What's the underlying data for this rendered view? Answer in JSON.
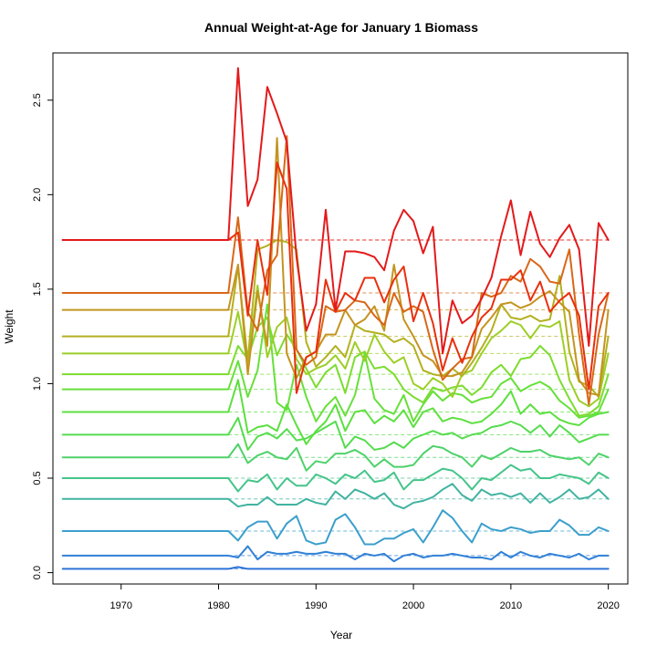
{
  "chart_data": {
    "type": "line",
    "title": "Annual Weight-at-Age for January 1 Biomass",
    "xlabel": "Year",
    "ylabel": "Weight",
    "xlim": [
      1963,
      2022
    ],
    "ylim": [
      -0.06,
      2.75
    ],
    "xticks": [
      1970,
      1980,
      1990,
      2000,
      2010,
      2020
    ],
    "yticks": [
      0.0,
      0.5,
      1.0,
      1.5,
      2.0,
      2.5
    ],
    "ytick_labels": [
      "0.0",
      "0.5",
      "1.0",
      "1.5",
      "2.0",
      "2.5"
    ],
    "grid": false,
    "legend": "none",
    "reference_line_style": "dashed",
    "x": [
      1964,
      1965,
      1966,
      1967,
      1968,
      1969,
      1970,
      1971,
      1972,
      1973,
      1974,
      1975,
      1976,
      1977,
      1978,
      1979,
      1980,
      1981,
      1982,
      1983,
      1984,
      1985,
      1986,
      1987,
      1988,
      1989,
      1990,
      1991,
      1992,
      1993,
      1994,
      1995,
      1996,
      1997,
      1998,
      1999,
      2000,
      2001,
      2002,
      2003,
      2004,
      2005,
      2006,
      2007,
      2008,
      2009,
      2010,
      2011,
      2012,
      2013,
      2014,
      2015,
      2016,
      2017,
      2018,
      2019,
      2020
    ],
    "series": [
      {
        "color": "#2e73d9",
        "mean": 0.02,
        "values": [
          0.02,
          0.02,
          0.02,
          0.02,
          0.02,
          0.02,
          0.02,
          0.02,
          0.02,
          0.02,
          0.02,
          0.02,
          0.02,
          0.02,
          0.02,
          0.02,
          0.02,
          0.02,
          0.03,
          0.02,
          0.02,
          0.02,
          0.02,
          0.02,
          0.02,
          0.02,
          0.02,
          0.02,
          0.02,
          0.02,
          0.02,
          0.02,
          0.02,
          0.02,
          0.02,
          0.02,
          0.02,
          0.02,
          0.02,
          0.02,
          0.02,
          0.02,
          0.02,
          0.02,
          0.02,
          0.02,
          0.02,
          0.02,
          0.02,
          0.02,
          0.02,
          0.02,
          0.02,
          0.02,
          0.02,
          0.02,
          0.02
        ]
      },
      {
        "color": "#3080d6",
        "mean": 0.09,
        "values": [
          0.09,
          0.09,
          0.09,
          0.09,
          0.09,
          0.09,
          0.09,
          0.09,
          0.09,
          0.09,
          0.09,
          0.09,
          0.09,
          0.09,
          0.09,
          0.09,
          0.09,
          0.09,
          0.08,
          0.14,
          0.07,
          0.11,
          0.1,
          0.1,
          0.11,
          0.1,
          0.1,
          0.11,
          0.1,
          0.1,
          0.07,
          0.1,
          0.09,
          0.1,
          0.06,
          0.09,
          0.1,
          0.08,
          0.09,
          0.09,
          0.1,
          0.09,
          0.08,
          0.08,
          0.07,
          0.11,
          0.08,
          0.11,
          0.09,
          0.08,
          0.1,
          0.09,
          0.08,
          0.1,
          0.07,
          0.09,
          0.09
        ]
      },
      {
        "color": "#3c9fcc",
        "mean": 0.22,
        "values": [
          0.22,
          0.22,
          0.22,
          0.22,
          0.22,
          0.22,
          0.22,
          0.22,
          0.22,
          0.22,
          0.22,
          0.22,
          0.22,
          0.22,
          0.22,
          0.22,
          0.22,
          0.22,
          0.17,
          0.24,
          0.27,
          0.27,
          0.18,
          0.26,
          0.3,
          0.17,
          0.15,
          0.16,
          0.28,
          0.31,
          0.24,
          0.15,
          0.15,
          0.18,
          0.18,
          0.21,
          0.23,
          0.16,
          0.24,
          0.33,
          0.29,
          0.22,
          0.16,
          0.26,
          0.23,
          0.22,
          0.24,
          0.23,
          0.21,
          0.22,
          0.22,
          0.28,
          0.25,
          0.2,
          0.2,
          0.24,
          0.22
        ]
      },
      {
        "color": "#40b3a0",
        "mean": 0.39,
        "values": [
          0.39,
          0.39,
          0.39,
          0.39,
          0.39,
          0.39,
          0.39,
          0.39,
          0.39,
          0.39,
          0.39,
          0.39,
          0.39,
          0.39,
          0.39,
          0.39,
          0.39,
          0.39,
          0.35,
          0.36,
          0.36,
          0.4,
          0.36,
          0.36,
          0.36,
          0.39,
          0.37,
          0.36,
          0.43,
          0.39,
          0.44,
          0.42,
          0.39,
          0.42,
          0.36,
          0.34,
          0.37,
          0.38,
          0.4,
          0.44,
          0.47,
          0.41,
          0.38,
          0.44,
          0.41,
          0.42,
          0.4,
          0.42,
          0.37,
          0.42,
          0.37,
          0.4,
          0.44,
          0.39,
          0.4,
          0.44,
          0.39
        ]
      },
      {
        "color": "#45c48a",
        "mean": 0.5,
        "values": [
          0.5,
          0.5,
          0.5,
          0.5,
          0.5,
          0.5,
          0.5,
          0.5,
          0.5,
          0.5,
          0.5,
          0.5,
          0.5,
          0.5,
          0.5,
          0.5,
          0.5,
          0.5,
          0.43,
          0.49,
          0.48,
          0.52,
          0.44,
          0.5,
          0.46,
          0.46,
          0.52,
          0.5,
          0.47,
          0.52,
          0.5,
          0.54,
          0.48,
          0.49,
          0.53,
          0.44,
          0.49,
          0.49,
          0.52,
          0.55,
          0.54,
          0.5,
          0.44,
          0.5,
          0.49,
          0.53,
          0.57,
          0.54,
          0.55,
          0.5,
          0.5,
          0.52,
          0.51,
          0.5,
          0.47,
          0.53,
          0.5
        ]
      },
      {
        "color": "#4ed26a",
        "mean": 0.61,
        "values": [
          0.61,
          0.61,
          0.61,
          0.61,
          0.61,
          0.61,
          0.61,
          0.61,
          0.61,
          0.61,
          0.61,
          0.61,
          0.61,
          0.61,
          0.61,
          0.61,
          0.61,
          0.61,
          0.68,
          0.58,
          0.62,
          0.64,
          0.61,
          0.6,
          0.66,
          0.54,
          0.59,
          0.58,
          0.63,
          0.63,
          0.65,
          0.62,
          0.56,
          0.6,
          0.56,
          0.56,
          0.57,
          0.63,
          0.67,
          0.66,
          0.63,
          0.61,
          0.56,
          0.62,
          0.6,
          0.63,
          0.66,
          0.64,
          0.64,
          0.65,
          0.62,
          0.61,
          0.6,
          0.61,
          0.57,
          0.63,
          0.61
        ]
      },
      {
        "color": "#55dc4e",
        "mean": 0.73,
        "values": [
          0.73,
          0.73,
          0.73,
          0.73,
          0.73,
          0.73,
          0.73,
          0.73,
          0.73,
          0.73,
          0.73,
          0.73,
          0.73,
          0.73,
          0.73,
          0.73,
          0.73,
          0.73,
          0.82,
          0.65,
          0.72,
          0.74,
          0.71,
          0.76,
          0.7,
          0.71,
          0.74,
          0.77,
          0.8,
          0.66,
          0.72,
          0.7,
          0.65,
          0.66,
          0.69,
          0.66,
          0.71,
          0.73,
          0.75,
          0.73,
          0.74,
          0.71,
          0.73,
          0.74,
          0.77,
          0.78,
          0.8,
          0.78,
          0.74,
          0.78,
          0.72,
          0.78,
          0.74,
          0.69,
          0.71,
          0.73,
          0.73
        ]
      },
      {
        "color": "#5ce040",
        "mean": 0.85,
        "values": [
          0.85,
          0.85,
          0.85,
          0.85,
          0.85,
          0.85,
          0.85,
          0.85,
          0.85,
          0.85,
          0.85,
          0.85,
          0.85,
          0.85,
          0.85,
          0.85,
          0.85,
          0.85,
          1.02,
          0.74,
          0.77,
          0.78,
          0.75,
          0.89,
          0.78,
          0.68,
          0.75,
          0.8,
          0.89,
          0.75,
          0.85,
          0.86,
          0.79,
          0.83,
          0.8,
          0.86,
          0.77,
          0.85,
          0.87,
          0.8,
          0.82,
          0.81,
          0.79,
          0.8,
          0.84,
          0.89,
          0.96,
          0.84,
          0.89,
          0.84,
          0.85,
          0.81,
          0.79,
          0.78,
          0.82,
          0.84,
          0.85
        ]
      },
      {
        "color": "#66e03a",
        "mean": 0.97,
        "values": [
          0.97,
          0.97,
          0.97,
          0.97,
          0.97,
          0.97,
          0.97,
          0.97,
          0.97,
          0.97,
          0.97,
          0.97,
          0.97,
          0.97,
          0.97,
          0.97,
          0.97,
          0.97,
          1.12,
          0.93,
          1.07,
          1.42,
          0.9,
          0.86,
          1.1,
          0.93,
          0.8,
          0.88,
          0.93,
          0.83,
          0.94,
          1.16,
          0.92,
          0.86,
          0.84,
          0.94,
          0.8,
          0.89,
          0.96,
          0.91,
          0.95,
          0.94,
          0.9,
          0.92,
          0.93,
          1.0,
          1.03,
          0.96,
          0.99,
          1.01,
          0.98,
          0.91,
          0.87,
          0.82,
          0.83,
          0.85,
          0.97
        ]
      },
      {
        "color": "#7cdc30",
        "mean": 1.05,
        "values": [
          1.05,
          1.05,
          1.05,
          1.05,
          1.05,
          1.05,
          1.05,
          1.05,
          1.05,
          1.05,
          1.05,
          1.05,
          1.05,
          1.05,
          1.05,
          1.05,
          1.05,
          1.05,
          1.2,
          1.13,
          1.3,
          1.35,
          1.15,
          1.26,
          1.18,
          1.08,
          0.98,
          1.06,
          1.1,
          0.95,
          1.14,
          1.17,
          1.08,
          1.09,
          1.05,
          0.97,
          0.93,
          0.9,
          0.98,
          0.96,
          0.98,
          0.99,
          0.94,
          0.98,
          1.06,
          1.1,
          1.04,
          1.13,
          1.14,
          1.2,
          1.15,
          1.02,
          0.92,
          0.83,
          0.84,
          0.88,
          1.05
        ]
      },
      {
        "color": "#9ccf28",
        "mean": 1.16,
        "values": [
          1.16,
          1.16,
          1.16,
          1.16,
          1.16,
          1.16,
          1.16,
          1.16,
          1.16,
          1.16,
          1.16,
          1.16,
          1.16,
          1.16,
          1.16,
          1.16,
          1.16,
          1.16,
          1.38,
          1.1,
          1.52,
          1.14,
          1.3,
          1.35,
          1.13,
          1.05,
          1.08,
          1.1,
          1.15,
          1.08,
          1.22,
          1.12,
          1.26,
          1.17,
          1.11,
          1.14,
          1.0,
          0.97,
          1.03,
          1.0,
          0.93,
          1.05,
          1.07,
          1.16,
          1.24,
          1.28,
          1.33,
          1.31,
          1.24,
          1.31,
          1.3,
          1.33,
          1.02,
          0.91,
          0.88,
          0.92,
          1.16
        ]
      },
      {
        "color": "#b3b020",
        "mean": 1.25,
        "values": [
          1.25,
          1.25,
          1.25,
          1.25,
          1.25,
          1.25,
          1.25,
          1.25,
          1.25,
          1.25,
          1.25,
          1.25,
          1.25,
          1.25,
          1.25,
          1.25,
          1.25,
          1.25,
          1.62,
          1.12,
          1.71,
          1.73,
          1.76,
          1.75,
          1.71,
          1.22,
          1.09,
          1.14,
          1.2,
          1.14,
          1.31,
          1.28,
          1.27,
          1.26,
          1.22,
          1.24,
          1.2,
          1.07,
          1.05,
          1.04,
          1.08,
          1.04,
          1.11,
          1.19,
          1.28,
          1.42,
          1.35,
          1.34,
          1.36,
          1.33,
          1.34,
          1.57,
          1.17,
          1.01,
          0.99,
          0.93,
          1.25
        ]
      },
      {
        "color": "#c49420",
        "mean": 1.39,
        "values": [
          1.39,
          1.39,
          1.39,
          1.39,
          1.39,
          1.39,
          1.39,
          1.39,
          1.39,
          1.39,
          1.39,
          1.39,
          1.39,
          1.39,
          1.39,
          1.39,
          1.39,
          1.39,
          1.63,
          1.05,
          1.49,
          1.2,
          2.3,
          1.16,
          1.03,
          1.14,
          1.17,
          1.26,
          1.26,
          1.39,
          1.31,
          1.34,
          1.41,
          1.28,
          1.63,
          1.34,
          1.25,
          1.15,
          1.12,
          1.04,
          1.04,
          1.06,
          1.14,
          1.29,
          1.35,
          1.42,
          1.43,
          1.4,
          1.42,
          1.46,
          1.49,
          1.43,
          1.38,
          1.02,
          0.95,
          0.94,
          1.39
        ]
      },
      {
        "color": "#d86818",
        "mean": 1.48,
        "values": [
          1.48,
          1.48,
          1.48,
          1.48,
          1.48,
          1.48,
          1.48,
          1.48,
          1.48,
          1.48,
          1.48,
          1.48,
          1.48,
          1.48,
          1.48,
          1.48,
          1.48,
          1.48,
          1.88,
          1.38,
          1.28,
          1.6,
          1.68,
          2.31,
          1.18,
          1.1,
          1.14,
          1.41,
          1.38,
          1.39,
          1.44,
          1.43,
          1.36,
          1.31,
          1.48,
          1.38,
          1.41,
          1.38,
          1.18,
          1.02,
          1.08,
          1.13,
          1.14,
          1.48,
          1.46,
          1.48,
          1.57,
          1.54,
          1.66,
          1.62,
          1.54,
          1.53,
          1.71,
          1.26,
          0.89,
          1.26,
          1.48
        ]
      },
      {
        "color": "#e8300e",
        "mean": 1.76,
        "values": [
          1.76,
          1.76,
          1.76,
          1.76,
          1.76,
          1.76,
          1.76,
          1.76,
          1.76,
          1.76,
          1.76,
          1.76,
          1.76,
          1.76,
          1.76,
          1.76,
          1.76,
          1.76,
          1.8,
          1.36,
          1.76,
          1.47,
          2.17,
          2.03,
          0.95,
          1.14,
          1.17,
          1.55,
          1.38,
          1.48,
          1.44,
          1.56,
          1.56,
          1.43,
          1.55,
          1.62,
          1.33,
          1.48,
          1.32,
          1.07,
          1.24,
          1.11,
          1.25,
          1.35,
          1.4,
          1.55,
          1.55,
          1.6,
          1.44,
          1.54,
          1.38,
          1.44,
          1.48,
          1.36,
          0.97,
          1.41,
          1.48
        ]
      },
      {
        "color": "#e31a1c",
        "mean": 1.76,
        "values": [
          1.76,
          1.76,
          1.76,
          1.76,
          1.76,
          1.76,
          1.76,
          1.76,
          1.76,
          1.76,
          1.76,
          1.76,
          1.76,
          1.76,
          1.76,
          1.76,
          1.76,
          1.76,
          2.67,
          1.94,
          2.08,
          2.57,
          2.43,
          2.28,
          1.67,
          1.28,
          1.42,
          1.92,
          1.39,
          1.7,
          1.7,
          1.69,
          1.67,
          1.6,
          1.81,
          1.92,
          1.86,
          1.69,
          1.83,
          1.16,
          1.44,
          1.32,
          1.36,
          1.45,
          1.56,
          1.78,
          1.97,
          1.68,
          1.91,
          1.74,
          1.67,
          1.77,
          1.84,
          1.71,
          1.2,
          1.85,
          1.76
        ]
      }
    ]
  }
}
